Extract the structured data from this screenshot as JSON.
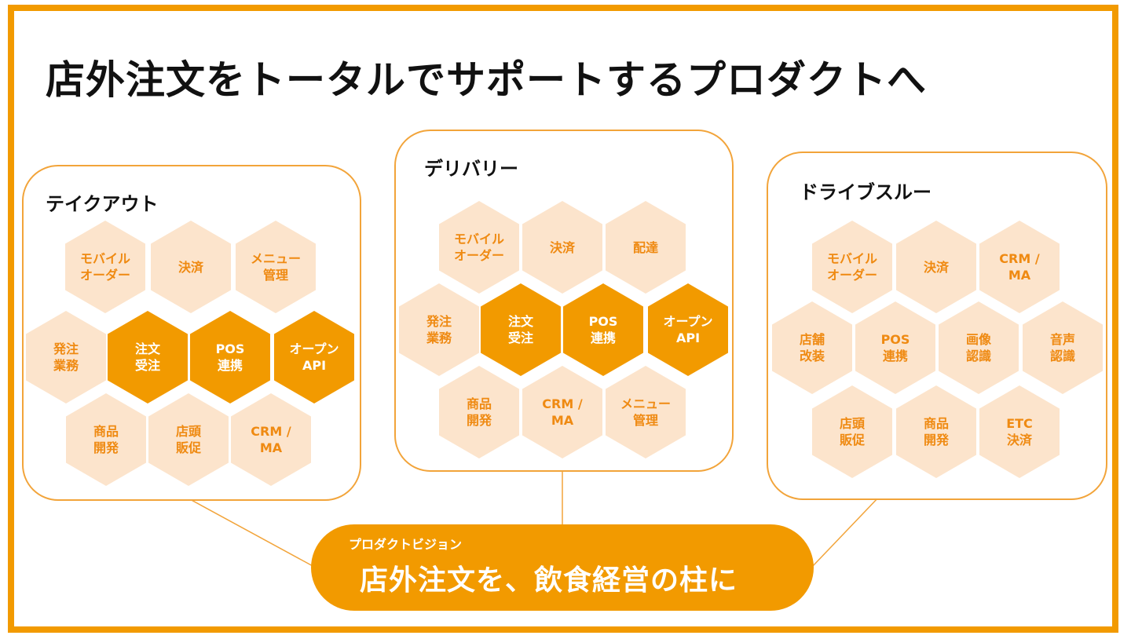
{
  "title": "店外注文をトータルでサポートするプロダクトへ",
  "colors": {
    "accent": "#F29A00",
    "light": "#FCE4CC",
    "light_text": "#EF8A12"
  },
  "panels": [
    {
      "title": "テイクアウト",
      "hexes": [
        {
          "label": "モバイル\nオーダー",
          "style": "light"
        },
        {
          "label": "決済",
          "style": "light"
        },
        {
          "label": "メニュー\n管理",
          "style": "light"
        },
        {
          "label": "発注\n業務",
          "style": "light"
        },
        {
          "label": "注文\n受注",
          "style": "dark"
        },
        {
          "label": "POS\n連携",
          "style": "dark"
        },
        {
          "label": "オープン\nAPI",
          "style": "dark"
        },
        {
          "label": "商品\n開発",
          "style": "light"
        },
        {
          "label": "店頭\n販促",
          "style": "light"
        },
        {
          "label": "CRM /\nMA",
          "style": "light"
        }
      ]
    },
    {
      "title": "デリバリー",
      "hexes": [
        {
          "label": "モバイル\nオーダー",
          "style": "light"
        },
        {
          "label": "決済",
          "style": "light"
        },
        {
          "label": "配達",
          "style": "light"
        },
        {
          "label": "発注\n業務",
          "style": "light"
        },
        {
          "label": "注文\n受注",
          "style": "dark"
        },
        {
          "label": "POS\n連携",
          "style": "dark"
        },
        {
          "label": "オープン\nAPI",
          "style": "dark"
        },
        {
          "label": "商品\n開発",
          "style": "light"
        },
        {
          "label": "CRM /\nMA",
          "style": "light"
        },
        {
          "label": "メニュー\n管理",
          "style": "light"
        }
      ]
    },
    {
      "title": "ドライブスルー",
      "hexes": [
        {
          "label": "モバイル\nオーダー",
          "style": "light"
        },
        {
          "label": "決済",
          "style": "light"
        },
        {
          "label": "CRM /\nMA",
          "style": "light"
        },
        {
          "label": "店舗\n改装",
          "style": "light"
        },
        {
          "label": "POS\n連携",
          "style": "light"
        },
        {
          "label": "画像\n認識",
          "style": "light"
        },
        {
          "label": "音声\n認識",
          "style": "light"
        },
        {
          "label": "店頭\n販促",
          "style": "light"
        },
        {
          "label": "商品\n開発",
          "style": "light"
        },
        {
          "label": "ETC\n決済",
          "style": "light"
        }
      ]
    }
  ],
  "vision": {
    "label": "プロダクトビジョン",
    "text": "店外注文を、飲食経営の柱に"
  }
}
